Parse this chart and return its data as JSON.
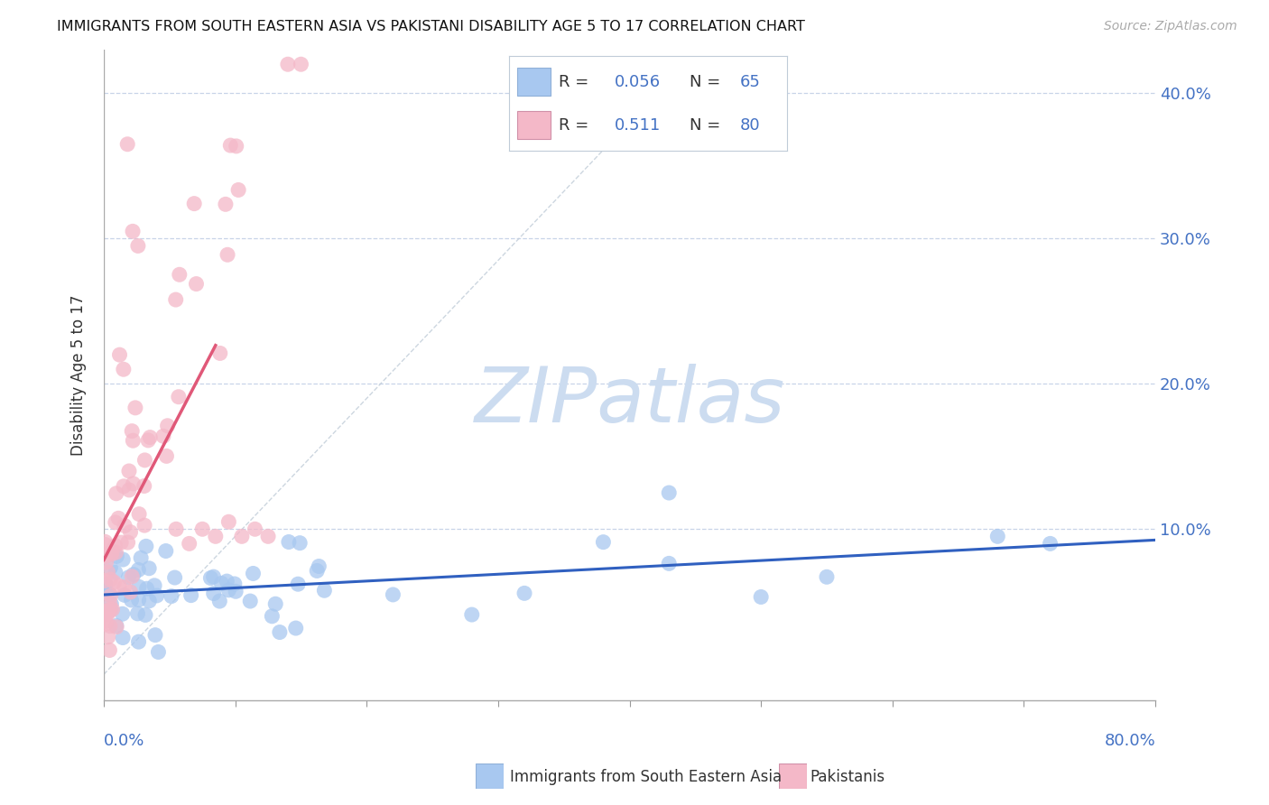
{
  "title": "IMMIGRANTS FROM SOUTH EASTERN ASIA VS PAKISTANI DISABILITY AGE 5 TO 17 CORRELATION CHART",
  "source": "Source: ZipAtlas.com",
  "ylabel": "Disability Age 5 to 17",
  "xlim": [
    0.0,
    0.8
  ],
  "ylim": [
    -0.018,
    0.43
  ],
  "legend1_r": "0.056",
  "legend1_n": "65",
  "legend2_r": "0.511",
  "legend2_n": "80",
  "color_blue": "#a8c8f0",
  "color_pink": "#f4b8c8",
  "color_blue_dark": "#3060c0",
  "color_pink_dark": "#e05878",
  "color_axis_text": "#4472c4",
  "color_r_text": "#4472c4",
  "color_n_text": "#4472c4",
  "watermark_color": "#ccdcf0",
  "watermark_text": "ZIPatlas",
  "label1": "Immigrants from South Eastern Asia",
  "label2": "Pakistanis"
}
